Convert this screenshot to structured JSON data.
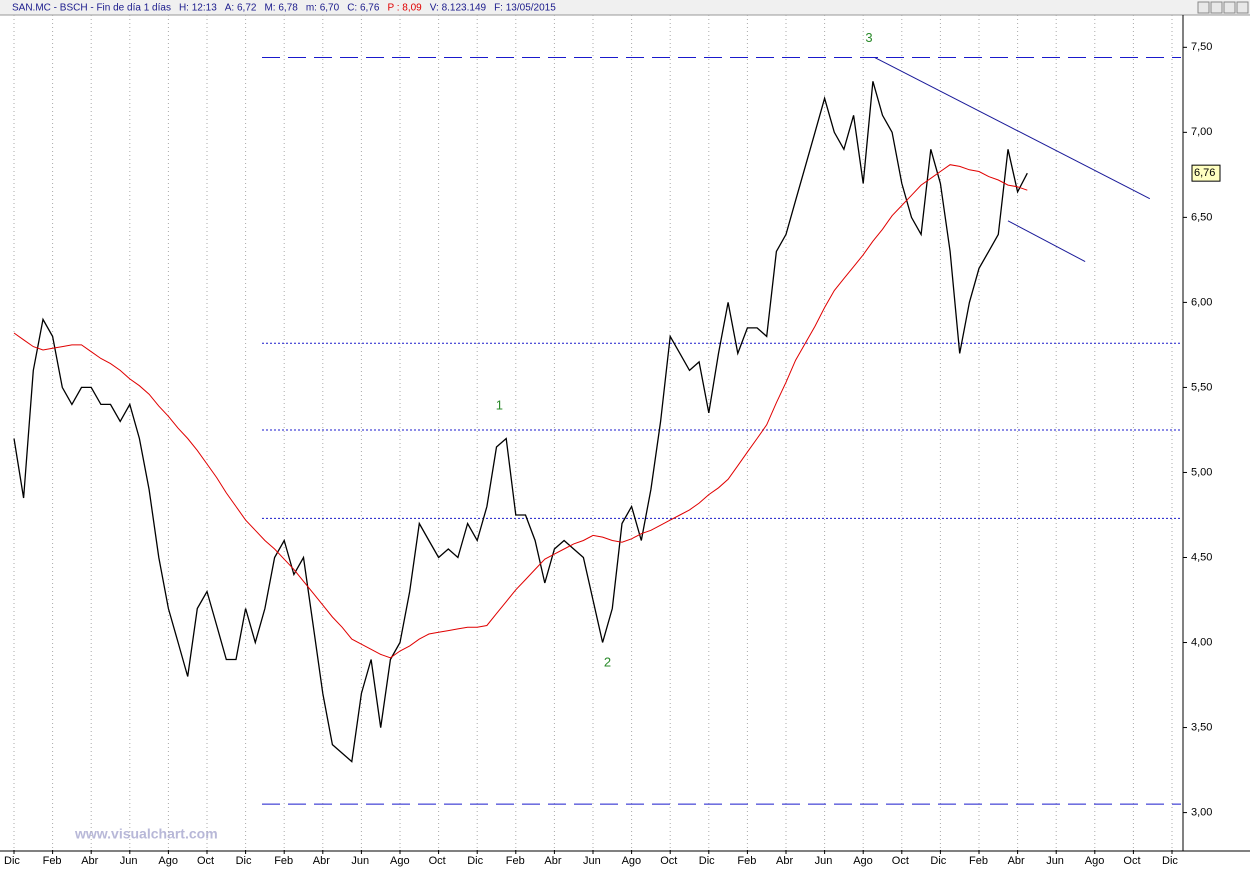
{
  "chart_data": {
    "type": "line",
    "title": "SAN.MC - BSCH - Fin de día 1 días",
    "header_fields": [
      {
        "text": "H: 12:13",
        "color": "#1a1a8c"
      },
      {
        "text": "A: 6,72",
        "color": "#1a1a8c"
      },
      {
        "text": "M: 6,78",
        "color": "#1a1a8c"
      },
      {
        "text": "m: 6,70",
        "color": "#1a1a8c"
      },
      {
        "text": "C: 6,76",
        "color": "#1a1a8c"
      },
      {
        "text": "P : 8,09",
        "color": "#e00000"
      },
      {
        "text": "V: 8.123.149",
        "color": "#1a1a8c"
      },
      {
        "text": "F: 13/05/2015",
        "color": "#1a1a8c"
      }
    ],
    "watermark": "www.visualchart.com",
    "categories": [
      "Dic",
      null,
      null,
      null,
      "Feb",
      null,
      null,
      null,
      "Abr",
      null,
      null,
      null,
      "Jun",
      null,
      null,
      null,
      "Ago",
      null,
      null,
      null,
      "Oct",
      null,
      null,
      null,
      "Dic",
      null,
      null,
      null,
      "Feb",
      null,
      null,
      null,
      "Abr",
      null,
      null,
      null,
      "Jun",
      null,
      null,
      null,
      "Ago",
      null,
      null,
      null,
      "Oct",
      null,
      null,
      null,
      "Dic",
      null,
      null,
      null,
      "Feb",
      null,
      null,
      null,
      "Abr",
      null,
      null,
      null,
      "Jun",
      null,
      null,
      null,
      "Ago",
      null,
      null,
      null,
      "Oct",
      null,
      null,
      null,
      "Dic",
      null,
      null,
      null,
      "Feb",
      null,
      null,
      null,
      "Abr",
      null,
      null,
      null,
      "Jun",
      null,
      null,
      null,
      "Ago",
      null,
      null,
      null,
      "Oct",
      null,
      null,
      null,
      "Dic",
      null,
      null,
      null,
      "Feb",
      null,
      null,
      null,
      "Abr",
      null,
      null,
      null,
      "Jun",
      null,
      null,
      null,
      "Ago",
      null,
      null,
      null,
      "Oct",
      null,
      null,
      null,
      "Dic"
    ],
    "series": [
      {
        "color": "#000000",
        "values": [
          5.2,
          4.85,
          5.6,
          5.9,
          5.8,
          5.5,
          5.4,
          5.5,
          5.5,
          5.4,
          5.4,
          5.3,
          5.4,
          5.2,
          4.9,
          4.5,
          4.2,
          4.0,
          3.8,
          4.2,
          4.3,
          4.1,
          3.9,
          3.9,
          4.2,
          4.0,
          4.2,
          4.5,
          4.6,
          4.4,
          4.5,
          4.1,
          3.7,
          3.4,
          3.35,
          3.3,
          3.7,
          3.9,
          3.5,
          3.9,
          4.0,
          4.3,
          4.7,
          4.6,
          4.5,
          4.55,
          4.5,
          4.7,
          4.6,
          4.8,
          5.15,
          5.2,
          4.75,
          4.75,
          4.6,
          4.35,
          4.55,
          4.6,
          4.55,
          4.5,
          4.25,
          4.0,
          4.2,
          4.7,
          4.8,
          4.6,
          4.9,
          5.3,
          5.8,
          5.7,
          5.6,
          5.65,
          5.35,
          5.7,
          6.0,
          5.7,
          5.85,
          5.85,
          5.8,
          6.3,
          6.4,
          6.6,
          6.8,
          7.0,
          7.2,
          7.0,
          6.9,
          7.1,
          6.7,
          7.3,
          7.1,
          7.0,
          6.7,
          6.5,
          6.4,
          6.9,
          6.7,
          6.3,
          5.7,
          6.0,
          6.2,
          6.3,
          6.4,
          6.9,
          6.65,
          6.76,
          null,
          null,
          null,
          null,
          null,
          null,
          null,
          null,
          null,
          null,
          null,
          null,
          null,
          null,
          null
        ]
      },
      {
        "color": "#e00000",
        "values": [
          5.82,
          5.78,
          5.74,
          5.72,
          5.73,
          5.74,
          5.75,
          5.75,
          5.71,
          5.67,
          5.64,
          5.6,
          5.55,
          5.51,
          5.46,
          5.39,
          5.33,
          5.26,
          5.2,
          5.13,
          5.05,
          4.97,
          4.88,
          4.8,
          4.72,
          4.66,
          4.6,
          4.55,
          4.49,
          4.43,
          4.36,
          4.29,
          4.22,
          4.15,
          4.09,
          4.02,
          3.99,
          3.96,
          3.93,
          3.91,
          3.95,
          3.98,
          4.02,
          4.05,
          4.06,
          4.07,
          4.08,
          4.09,
          4.09,
          4.1,
          4.17,
          4.24,
          4.31,
          4.37,
          4.43,
          4.49,
          4.52,
          4.55,
          4.58,
          4.6,
          4.63,
          4.62,
          4.6,
          4.59,
          4.61,
          4.64,
          4.66,
          4.69,
          4.72,
          4.75,
          4.78,
          4.82,
          4.87,
          4.91,
          4.96,
          5.04,
          5.12,
          5.2,
          5.28,
          5.41,
          5.53,
          5.66,
          5.76,
          5.86,
          5.97,
          6.07,
          6.14,
          6.21,
          6.28,
          6.36,
          6.43,
          6.51,
          6.57,
          6.63,
          6.69,
          6.73,
          6.77,
          6.81,
          6.8,
          6.78,
          6.77,
          6.74,
          6.72,
          6.69,
          6.68,
          6.66,
          null,
          null,
          null,
          null,
          null,
          null,
          null,
          null,
          null,
          null,
          null,
          null,
          null,
          null,
          null
        ]
      }
    ],
    "ylim": [
      2.78,
      7.69
    ],
    "yticks": [
      {
        "value": 3.0,
        "label": "3,00"
      },
      {
        "value": 3.5,
        "label": "3,50"
      },
      {
        "value": 4.0,
        "label": "4,00"
      },
      {
        "value": 4.5,
        "label": "4,50"
      },
      {
        "value": 5.0,
        "label": "5,00"
      },
      {
        "value": 5.5,
        "label": "5,50"
      },
      {
        "value": 6.0,
        "label": "6,00"
      },
      {
        "value": 6.5,
        "label": "6,50"
      },
      {
        "value": 7.0,
        "label": "7,00"
      },
      {
        "value": 7.5,
        "label": "7,50"
      }
    ],
    "last_price": {
      "value": 6.76,
      "label": "6,76"
    },
    "dashed_levels": [
      7.44,
      3.05
    ],
    "dotted_levels": [
      5.76,
      5.25,
      4.73
    ],
    "trend_lines": [
      {
        "x": [
          89.2,
          117.7
        ],
        "y": [
          7.44,
          6.61
        ]
      },
      {
        "x": [
          103,
          111
        ],
        "y": [
          6.48,
          6.24
        ]
      }
    ],
    "annotations": [
      {
        "text": "1",
        "x": 50.3,
        "y": 5.39
      },
      {
        "text": "2",
        "x": 61.5,
        "y": 3.88
      },
      {
        "text": "3",
        "x": 88.6,
        "y": 7.55
      }
    ],
    "grid": true
  }
}
